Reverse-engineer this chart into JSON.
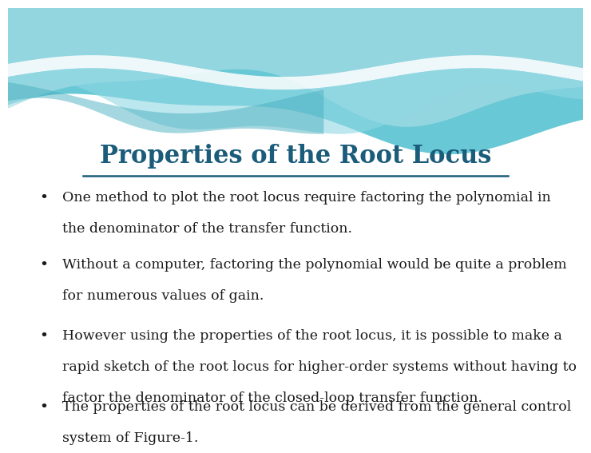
{
  "title": "Properties of the Root Locus",
  "title_color": "#1a5c7a",
  "title_fontsize": 22,
  "background_color": "#ffffff",
  "bullet_points": [
    "One method to plot the root locus require factoring the polynomial in the denominator of the transfer function.",
    "Without a computer, factoring the polynomial would be quite a problem for numerous values of gain.",
    "However using the properties of the root locus, it is possible to make a rapid sketch of the root locus for higher-order systems without having to factor the denominator of the closed-loop transfer function.",
    "The properties of the root locus can be derived from the general control system of Figure-1."
  ],
  "bullet_lines": [
    [
      "One method to plot the root locus require factoring the polynomial in",
      "the denominator of the transfer function."
    ],
    [
      "Without a computer, factoring the polynomial would be quite a problem",
      "for numerous values of gain."
    ],
    [
      "However using the properties of the root locus, it is possible to make a",
      "rapid sketch of the root locus for higher-order systems without having to",
      "factor the denominator of the closed-loop transfer function."
    ],
    [
      "The properties of the root locus can be derived from the general control",
      "system of Figure-1."
    ]
  ],
  "bullet_color": "#1a1a1a",
  "bullet_fontsize": 12.5,
  "wave_color_back": "#6dcbd8",
  "wave_color_mid": "#b0e0e8",
  "wave_color_front": "#50b8c8",
  "wave_white": "#e8f8fa",
  "underline_color": "#1a5c7a"
}
